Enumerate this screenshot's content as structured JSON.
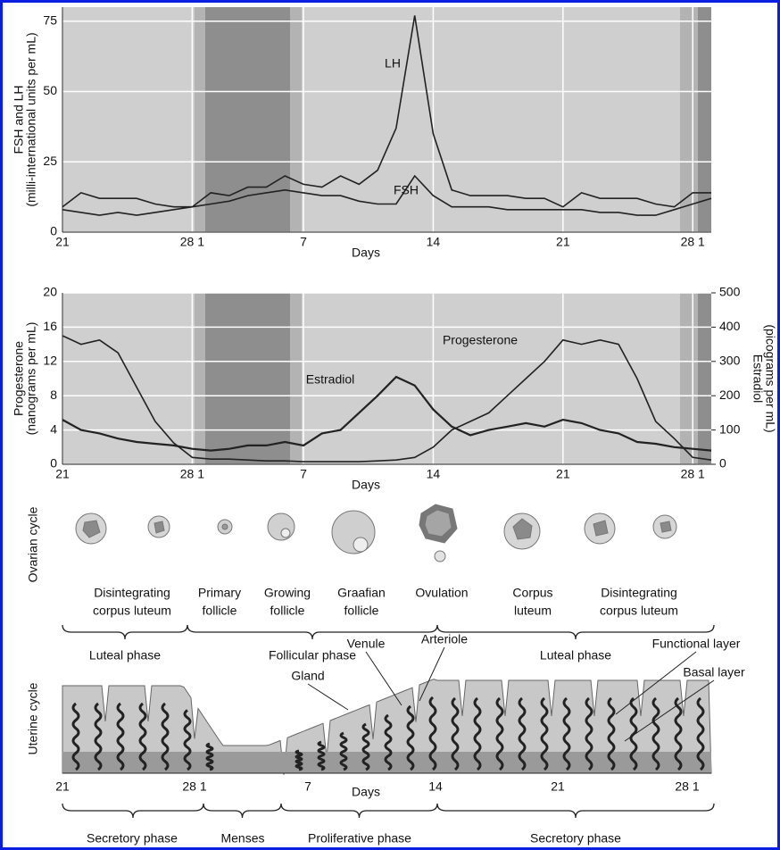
{
  "chart_data": [
    {
      "type": "line",
      "ylabel": [
        "FSH and LH",
        "(milli-international units per mL)"
      ],
      "xlabel": "Days",
      "x": [
        -7,
        -6,
        -5,
        -4,
        -3,
        -2,
        -1,
        0,
        1,
        2,
        3,
        4,
        5,
        6,
        7,
        8,
        9,
        10,
        11,
        12,
        13,
        14,
        15,
        16,
        17,
        18,
        19,
        20,
        21,
        22,
        23,
        24,
        25,
        26,
        27,
        28
      ],
      "xlim": [
        -7,
        28
      ],
      "xticks": [
        {
          "value": -7,
          "label": "21"
        },
        {
          "value": 0,
          "label": "28 1"
        },
        {
          "value": 6,
          "label": "7"
        },
        {
          "value": 13,
          "label": "14"
        },
        {
          "value": 20,
          "label": "21"
        },
        {
          "value": 27,
          "label": "28 1"
        }
      ],
      "ylim": [
        0,
        80
      ],
      "yticks": [
        0,
        25,
        50,
        75
      ],
      "grid": true,
      "series": [
        {
          "name": "LH",
          "color": "#222222",
          "values": [
            9,
            14,
            12,
            12,
            12,
            10,
            9,
            9,
            14,
            13,
            16,
            16,
            20,
            17,
            16,
            20,
            17,
            22,
            37,
            77,
            35,
            15,
            13,
            13,
            13,
            12,
            12,
            9,
            14,
            12,
            12,
            12,
            10,
            9,
            14,
            14
          ]
        },
        {
          "name": "FSH",
          "color": "#222222",
          "values": [
            8,
            7,
            6,
            7,
            6,
            7,
            8,
            9,
            10,
            11,
            13,
            14,
            15,
            14,
            13,
            13,
            11,
            10,
            10,
            20,
            13,
            9,
            9,
            9,
            8,
            8,
            8,
            8,
            8,
            7,
            7,
            6,
            6,
            8,
            10,
            12
          ]
        }
      ]
    },
    {
      "type": "line",
      "ylabel": [
        "Progesterone",
        "(nanograms per mL)"
      ],
      "y2label": [
        "Estradiol",
        "(picograms per mL)"
      ],
      "xlabel": "Days",
      "x": [
        -7,
        -6,
        -5,
        -4,
        -3,
        -2,
        -1,
        0,
        1,
        2,
        3,
        4,
        5,
        6,
        7,
        8,
        9,
        10,
        11,
        12,
        13,
        14,
        15,
        16,
        17,
        18,
        19,
        20,
        21,
        22,
        23,
        24,
        25,
        26,
        27,
        28
      ],
      "xlim": [
        -7,
        28
      ],
      "xticks": [
        {
          "value": -7,
          "label": "21"
        },
        {
          "value": 0,
          "label": "28 1"
        },
        {
          "value": 6,
          "label": "7"
        },
        {
          "value": 13,
          "label": "14"
        },
        {
          "value": 20,
          "label": "21"
        },
        {
          "value": 27,
          "label": "28 1"
        }
      ],
      "ylim": [
        0,
        20
      ],
      "yticks": [
        0,
        4,
        8,
        12,
        16,
        20
      ],
      "y2lim": [
        0,
        500
      ],
      "y2ticks": [
        0,
        100,
        200,
        300,
        400,
        500
      ],
      "grid": true,
      "series": [
        {
          "name": "Progesterone",
          "color": "#222222",
          "values": [
            15,
            14,
            14.5,
            13,
            9,
            5,
            2.5,
            0.8,
            0.6,
            0.6,
            0.5,
            0.4,
            0.4,
            0.3,
            0.3,
            0.3,
            0.3,
            0.4,
            0.5,
            0.8,
            2,
            4,
            5,
            6,
            8,
            10,
            12,
            14.5,
            14,
            14.5,
            14,
            10,
            5,
            3,
            0.8,
            0.5
          ]
        },
        {
          "name": "Estradiol",
          "color": "#222222",
          "axis": "y2",
          "values": [
            130,
            100,
            90,
            75,
            65,
            60,
            55,
            45,
            40,
            45,
            55,
            55,
            65,
            55,
            90,
            100,
            150,
            200,
            255,
            230,
            160,
            110,
            85,
            100,
            110,
            120,
            110,
            130,
            120,
            100,
            90,
            65,
            60,
            50,
            45,
            40
          ]
        }
      ]
    }
  ],
  "ovarian_cycle": {
    "label": "Ovarian cycle",
    "stages": [
      [
        "Disintegrating",
        "corpus luteum"
      ],
      [
        "Primary",
        "follicle"
      ],
      [
        "Growing",
        "follicle"
      ],
      [
        "Graafian",
        "follicle"
      ],
      [
        "Ovulation"
      ],
      [
        "Corpus",
        "luteum"
      ],
      [
        "Disintegrating",
        "corpus luteum"
      ]
    ],
    "phases": [
      "Luteal phase",
      "Follicular phase",
      "Luteal phase"
    ]
  },
  "uterine_cycle": {
    "label": "Uterine cycle",
    "annotations": [
      "Gland",
      "Venule",
      "Arteriole",
      "Functional layer",
      "Basal layer"
    ],
    "axis": {
      "ticks": [
        "21",
        "28 1",
        "7",
        "14",
        "21",
        "28 1"
      ],
      "label": "Days"
    },
    "phases": [
      "Secretory phase",
      "Menses",
      "Proliferative phase",
      "Secretory phase"
    ]
  }
}
